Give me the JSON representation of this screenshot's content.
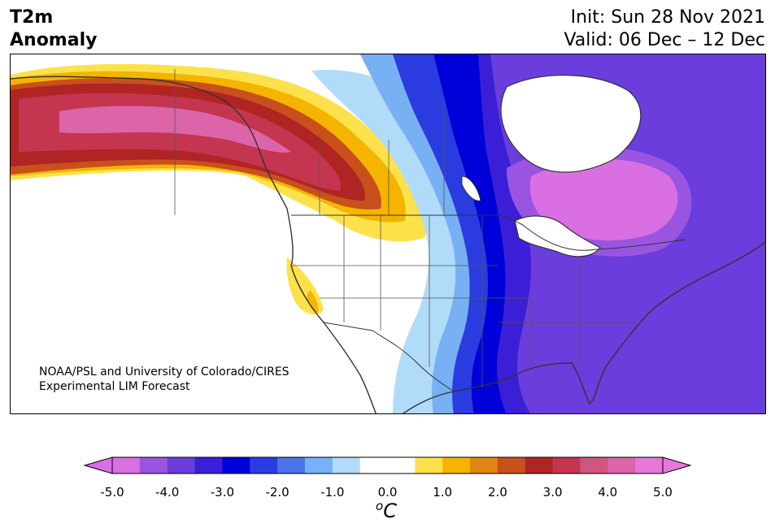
{
  "header": {
    "title_line1": "T2m",
    "title_line2": "Anomaly",
    "init_text": "Init: Sun 28 Nov 2021",
    "valid_text": "Valid: 06 Dec – 12 Dec"
  },
  "credit": {
    "line1": "NOAA/PSL and University of Colorado/CIRES",
    "line2": "Experimental LIM Forecast"
  },
  "colorbar": {
    "unit_base": "C",
    "unit_sup": "o",
    "ticks": [
      "-5.0",
      "-4.0",
      "-3.0",
      "-2.0",
      "-1.0",
      "0.0",
      "1.0",
      "2.0",
      "3.0",
      "4.0",
      "5.0"
    ],
    "colors": [
      "#d96fe3",
      "#9a55e0",
      "#6a3ddc",
      "#3a1fd6",
      "#0000d8",
      "#2a3ce0",
      "#4a74e8",
      "#78b0f4",
      "#b0dcfa",
      "#ffffff",
      "#ffffff",
      "#fce14a",
      "#f4b400",
      "#e08414",
      "#c8501c",
      "#b02424",
      "#c43550",
      "#d05680",
      "#dc64a8",
      "#e678d8"
    ],
    "extend_low_color": "#d96fe3",
    "extend_high_color": "#e678d8"
  }
}
